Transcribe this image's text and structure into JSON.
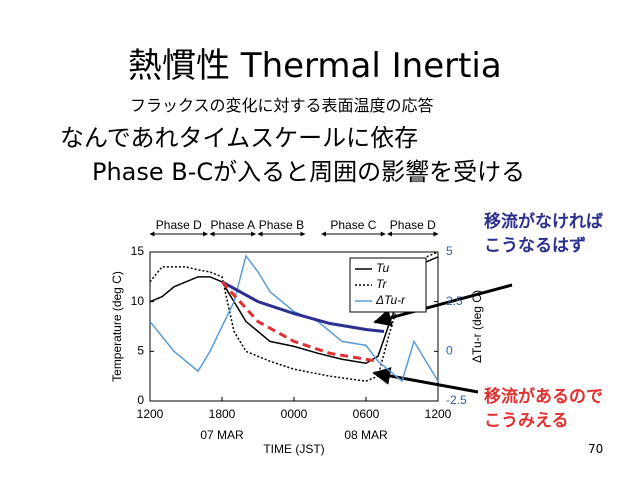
{
  "slide": {
    "title": "熱慣性 Thermal Inertia",
    "subtitle": "フラックスの変化に対する表面温度の応答",
    "lines": [
      "なんであれタイムスケールに依存",
      "Phase B-Cが入ると周囲の影響を受ける"
    ],
    "note_no_advection": [
      "移流がなければ",
      "こうなるはず"
    ],
    "note_advection": [
      "移流があるので",
      "こうみえる"
    ],
    "page_number": "70"
  },
  "chart_data": {
    "type": "line",
    "xlabel": "TIME (JST)",
    "ylabel": "Temperature (deg C)",
    "y2label": "ΔTu-r (deg C)",
    "xlim": [
      0,
      24
    ],
    "xticks": [
      {
        "value": 0,
        "label": "1200"
      },
      {
        "value": 6,
        "label": "1800"
      },
      {
        "value": 12,
        "label": "0000"
      },
      {
        "value": 18,
        "label": "0600"
      },
      {
        "value": 24,
        "label": "1200"
      }
    ],
    "date_labels": [
      {
        "value": 6,
        "label": "07 MAR"
      },
      {
        "value": 18,
        "label": "08 MAR"
      }
    ],
    "ylim": [
      0,
      15
    ],
    "yticks": [
      0,
      5,
      10,
      15
    ],
    "y2lim": [
      -2.5,
      5
    ],
    "y2ticks": [
      -2.5,
      0,
      2.5,
      5
    ],
    "y2color": "#2e5fa8",
    "phases": [
      {
        "label": "Phase D",
        "start": 0,
        "end": 4.8
      },
      {
        "label": "Phase A",
        "start": 5,
        "end": 8.8
      },
      {
        "label": "Phase B",
        "start": 9,
        "end": 12.9
      },
      {
        "label": "Phase  C",
        "start": 14.3,
        "end": 19.6
      },
      {
        "label": "Phase D",
        "start": 19.8,
        "end": 24
      }
    ],
    "series": [
      {
        "name": "Tu",
        "color": "#000000",
        "dash": "solid",
        "x": [
          0,
          1,
          2,
          3,
          4,
          5,
          6,
          7,
          8,
          10,
          12,
          14,
          16,
          18,
          19,
          20,
          21,
          22,
          23,
          24
        ],
        "values": [
          10,
          10.5,
          11.5,
          12,
          12.5,
          12.5,
          12,
          10,
          8,
          6,
          5.5,
          4.8,
          4.2,
          3.8,
          4.5,
          8,
          11,
          12.5,
          14,
          14.5
        ]
      },
      {
        "name": "Tr",
        "color": "#000000",
        "dash": "dotted",
        "x": [
          0,
          1,
          2,
          3,
          4,
          5,
          6,
          7,
          8,
          10,
          12,
          15,
          18,
          19,
          20,
          21,
          22,
          23,
          24
        ],
        "values": [
          12,
          13.5,
          13.5,
          13.5,
          13.2,
          13,
          12.5,
          7,
          5,
          4,
          3.2,
          2.5,
          2,
          2.5,
          7,
          11,
          13,
          14.5,
          15
        ]
      },
      {
        "name": "ΔTu-r",
        "color": "#5b9bd5",
        "dash": "solid",
        "axis": "y2",
        "x": [
          0,
          2,
          4,
          5,
          7,
          8,
          9,
          10,
          12,
          14,
          16,
          18,
          19,
          20,
          21,
          22,
          24
        ],
        "values": [
          1.5,
          0,
          -1,
          0,
          2.5,
          4.8,
          4,
          3,
          2,
          1.5,
          0.5,
          0.3,
          -0.5,
          -1,
          -1.5,
          0.5,
          -1.5
        ]
      },
      {
        "color": "#2b2f8f",
        "dash": "solid",
        "x": [
          6,
          9,
          12,
          15,
          18,
          19.5
        ],
        "values": [
          12,
          10,
          8.8,
          7.8,
          7.2,
          7
        ]
      },
      {
        "color": "#e03030",
        "dash": "dashed",
        "x": [
          6,
          9,
          12,
          15,
          19
        ],
        "values": [
          12,
          8,
          6,
          4.8,
          4
        ]
      }
    ],
    "legend": "upper right"
  }
}
